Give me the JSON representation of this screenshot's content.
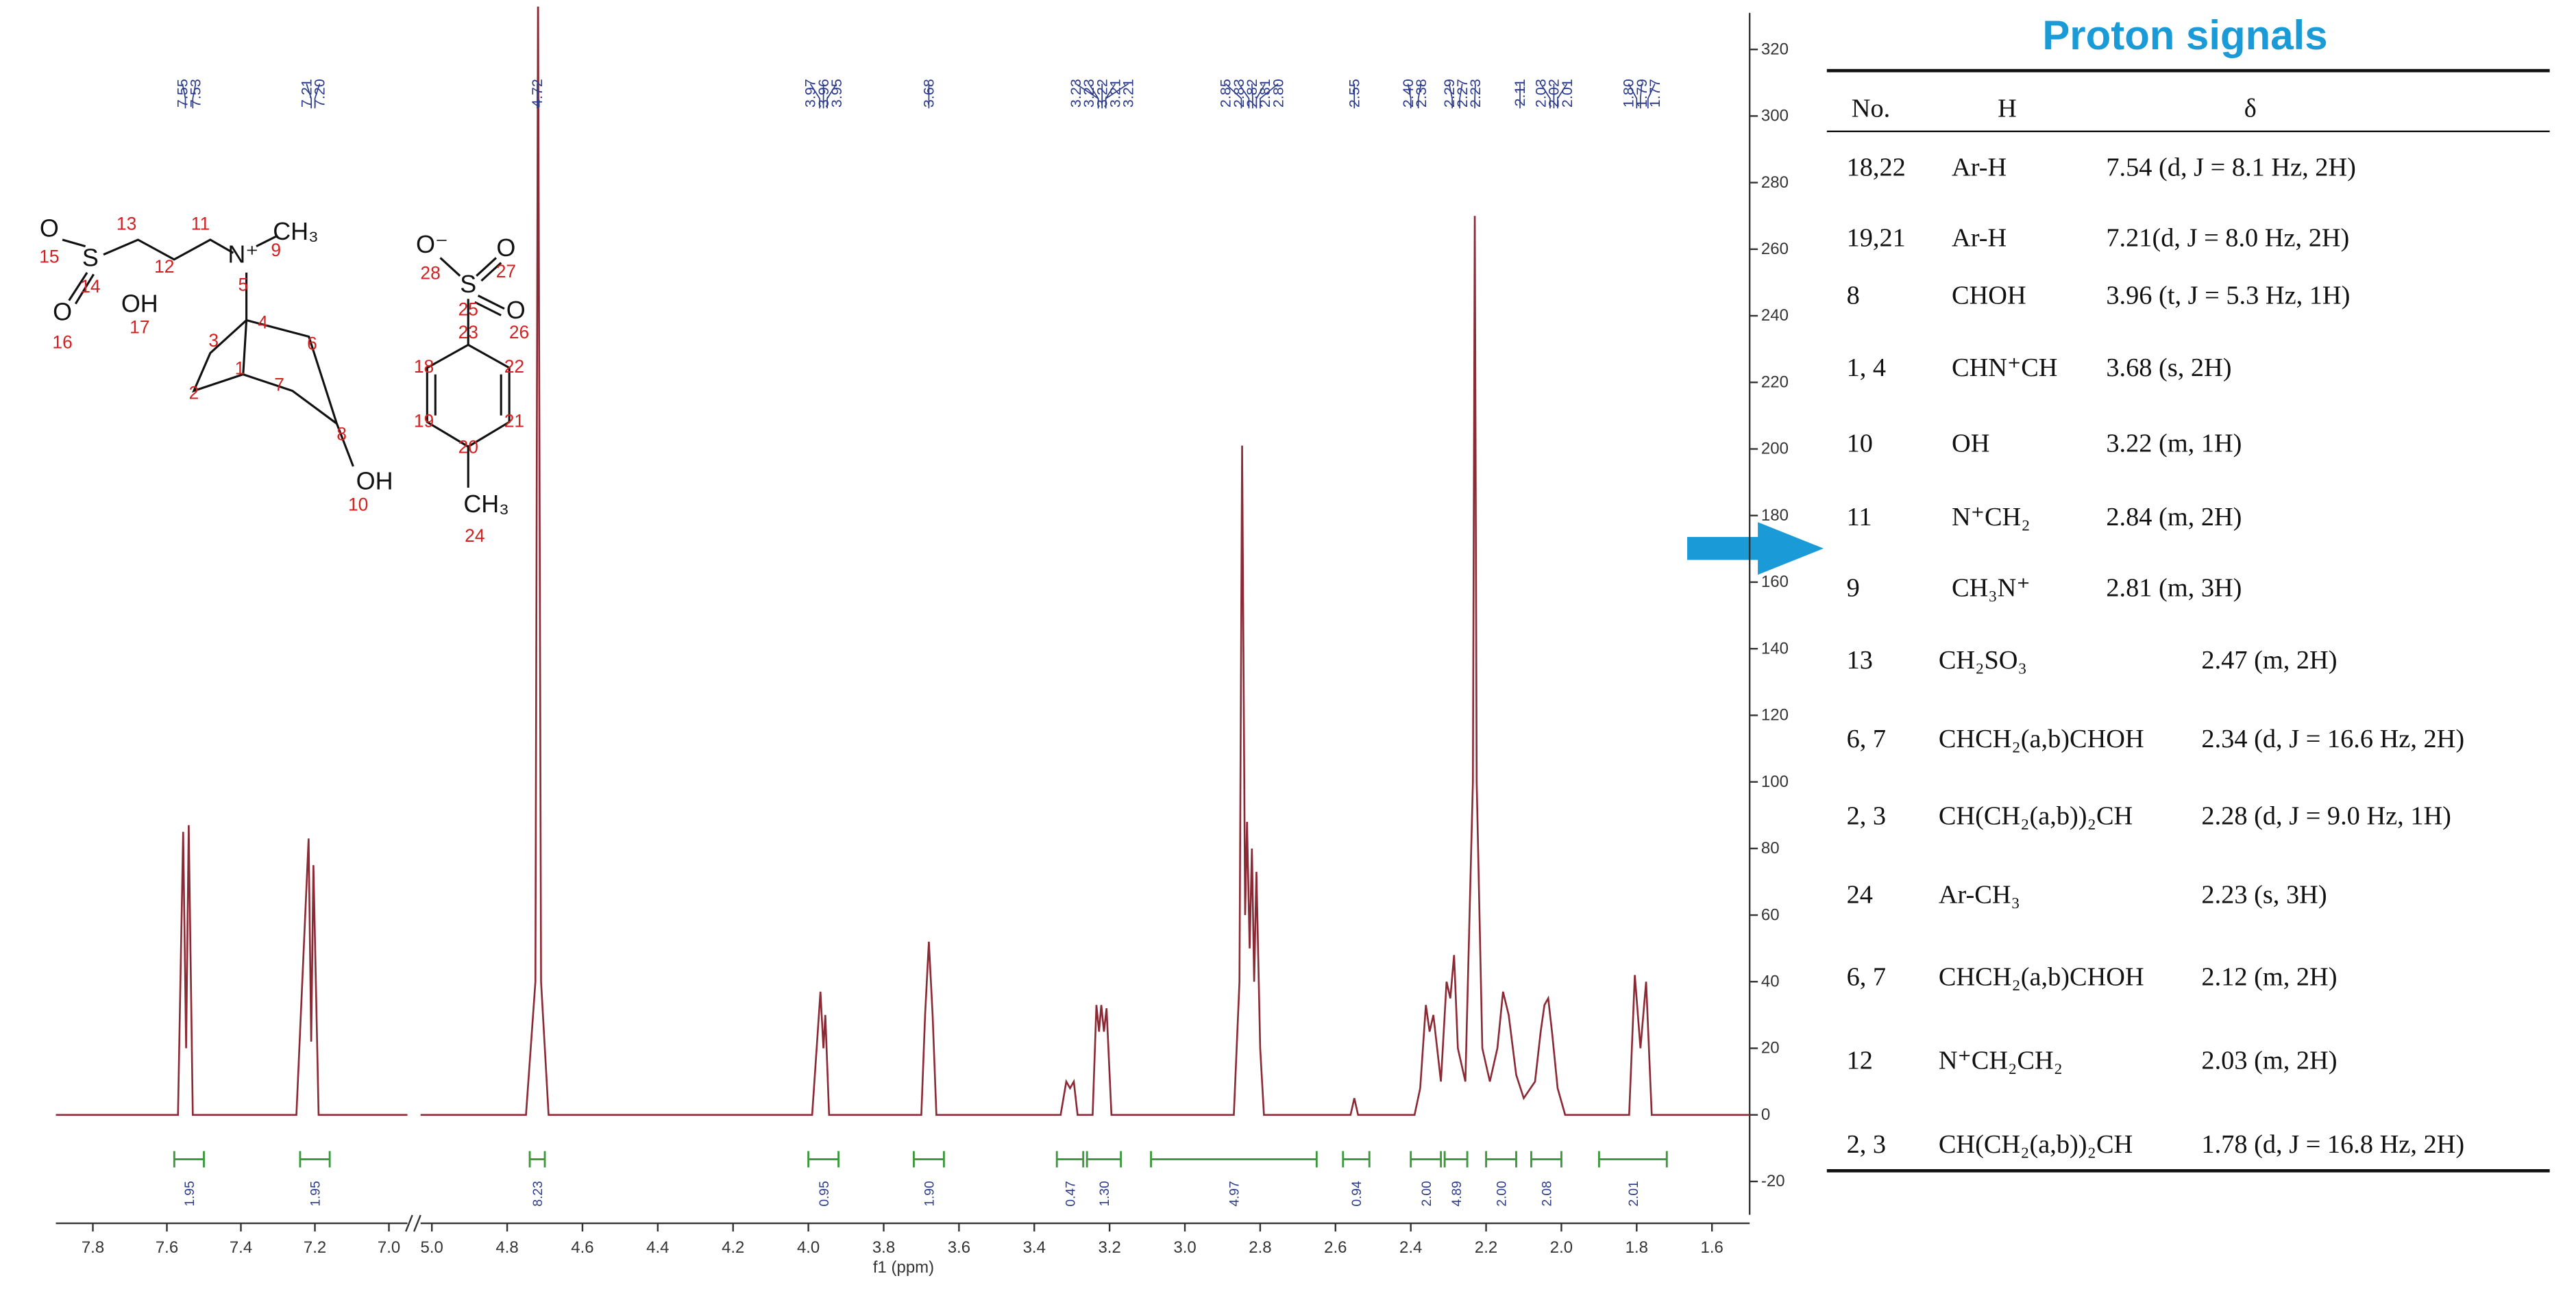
{
  "chart_data": [
    {
      "type": "line",
      "color": "#8b2a35",
      "integral_color": "#3c9a3c",
      "label_color": "#2b3a8a",
      "xlim": [
        7.9,
        6.95
      ],
      "ylim": [
        -30,
        330
      ],
      "xticks": [
        7.8,
        7.6,
        7.4,
        7.2,
        {
          "value": 7,
          "label": "7.0"
        }
      ],
      "x": [
        7.9,
        7.57,
        7.556,
        7.548,
        7.541,
        7.53,
        7.25,
        7.217,
        7.21,
        7.204,
        7.19,
        6.95
      ],
      "values": [
        0,
        0,
        85,
        20,
        87,
        0,
        0,
        83,
        22,
        75,
        0,
        0
      ],
      "peak_labels": [
        7.55,
        7.53,
        7.21,
        {
          "value": 7.2,
          "label": "7.20"
        }
      ],
      "integrals": [
        {
          "range": [
            7.58,
            7.5
          ],
          "value": 1.95
        },
        {
          "range": [
            7.24,
            7.16
          ],
          "value": 1.95
        }
      ]
    },
    {
      "type": "line",
      "color": "#8b2a35",
      "integral_color": "#3c9a3c",
      "label_color": "#2b3a8a",
      "x_label": "f1 (ppm)",
      "xlim": [
        5.03,
        1.5
      ],
      "ylim": [
        -30,
        330
      ],
      "xticks": [
        {
          "value": 5,
          "label": "5.0"
        },
        4.8,
        4.6,
        4.4,
        4.2,
        {
          "value": 4,
          "label": "4.0"
        },
        3.8,
        3.6,
        3.4,
        3.2,
        {
          "value": 3,
          "label": "3.0"
        },
        2.8,
        2.6,
        2.4,
        2.2,
        {
          "value": 2,
          "label": "2.0"
        },
        1.8,
        1.6
      ],
      "yticks": [
        -20,
        0,
        20,
        40,
        60,
        80,
        100,
        120,
        140,
        160,
        180,
        200,
        220,
        240,
        260,
        280,
        300,
        320
      ],
      "x": [
        5.03,
        4.75,
        4.725,
        4.718,
        4.71,
        4.69,
        3.99,
        3.975,
        3.968,
        3.96,
        3.955,
        3.945,
        3.7,
        3.69,
        3.68,
        3.67,
        3.66,
        3.33,
        3.315,
        3.305,
        3.295,
        3.285,
        3.245,
        3.235,
        3.228,
        3.222,
        3.215,
        3.208,
        3.195,
        2.87,
        2.855,
        2.848,
        2.84,
        2.835,
        2.828,
        2.822,
        2.816,
        2.81,
        2.8,
        2.79,
        2.56,
        2.55,
        2.54,
        2.39,
        2.375,
        2.36,
        2.35,
        2.34,
        2.32,
        2.305,
        2.295,
        2.285,
        2.275,
        2.255,
        2.235,
        2.23,
        2.225,
        2.21,
        2.19,
        2.17,
        2.155,
        2.14,
        2.12,
        2.1,
        2.07,
        2.055,
        2.045,
        2.035,
        2.025,
        2.01,
        1.99,
        1.82,
        1.805,
        1.79,
        1.775,
        1.76,
        1.5
      ],
      "values": [
        0,
        0,
        40,
        340,
        40,
        0,
        0,
        25,
        37,
        20,
        30,
        0,
        0,
        30,
        52,
        30,
        0,
        0,
        10,
        8,
        10,
        0,
        0,
        33,
        25,
        33,
        25,
        32,
        0,
        0,
        40,
        201,
        60,
        88,
        50,
        80,
        40,
        73,
        20,
        0,
        0,
        5,
        0,
        0,
        8,
        33,
        25,
        30,
        10,
        40,
        35,
        48,
        20,
        10,
        100,
        270,
        100,
        20,
        10,
        20,
        37,
        30,
        12,
        5,
        10,
        25,
        33,
        35,
        25,
        8,
        0,
        0,
        42,
        20,
        40,
        0,
        0
      ],
      "peak_labels": [
        4.72,
        3.97,
        3.96,
        3.95,
        3.68,
        3.23,
        3.23,
        3.22,
        3.21,
        3.21,
        2.85,
        2.83,
        2.82,
        2.81,
        {
          "value": 2.8,
          "label": "2.80"
        },
        2.55,
        {
          "value": 2.4,
          "label": "2.40"
        },
        2.38,
        2.29,
        2.27,
        2.23,
        2.11,
        2.03,
        2.02,
        2.01,
        {
          "value": 1.8,
          "label": "1.80"
        },
        1.79,
        1.77
      ],
      "integrals": [
        {
          "range": [
            4.74,
            4.7
          ],
          "value": 8.23
        },
        {
          "range": [
            4,
            3.92
          ],
          "value": 0.95
        },
        {
          "range": [
            3.72,
            3.64
          ],
          "value": 1.9,
          "label": "1.90"
        },
        {
          "range": [
            3.34,
            3.27
          ],
          "value": 0.47
        },
        {
          "range": [
            3.26,
            3.17
          ],
          "value": 1.3,
          "label": "1.30"
        },
        {
          "range": [
            3.09,
            2.65
          ],
          "value": 4.97
        },
        {
          "range": [
            2.58,
            2.51
          ],
          "value": 0.94
        },
        {
          "range": [
            2.4,
            2.32
          ],
          "value": 2,
          "label": "2.00"
        },
        {
          "range": [
            2.31,
            2.25
          ],
          "value": 4.89
        },
        {
          "range": [
            2.2,
            2.12
          ],
          "value": 2,
          "label": "2.00"
        },
        {
          "range": [
            2.08,
            2
          ],
          "value": 2.08
        },
        {
          "range": [
            1.9,
            1.72
          ],
          "value": 2.01
        }
      ]
    }
  ],
  "structures": [
    {
      "labels": [
        "O",
        "13",
        "11",
        "CH₃",
        "15",
        "S",
        "12",
        "N⁺",
        "9",
        "14",
        "OH",
        "5",
        "O",
        "17",
        "16",
        "4",
        "3",
        "6",
        "1",
        "7",
        "2",
        "8",
        "OH",
        "10"
      ]
    },
    {
      "labels": [
        "O⁻",
        "O",
        "28",
        "27",
        "S",
        "25",
        "O",
        "26",
        "23",
        "18",
        "22",
        "19",
        "21",
        "20",
        "CH₃",
        "24"
      ]
    }
  ],
  "table": {
    "title": "Proton signals",
    "columns": [
      "No.",
      "H",
      "δ"
    ],
    "rows": [
      [
        "18,22",
        "Ar-H",
        "7.54 (d, J = 8.1 Hz, 2H)"
      ],
      [
        "19,21",
        "Ar-H",
        "7.21(d, J = 8.0 Hz, 2H)"
      ],
      [
        "8",
        "CHOH",
        "3.96 (t, J = 5.3 Hz, 1H)"
      ],
      [
        "1, 4",
        "CHN⁺CH",
        "3.68 (s, 2H)"
      ],
      [
        "10",
        "OH",
        "3.22 (m, 1H)"
      ],
      [
        "11",
        "N⁺CH₂",
        "2.84 (m, 2H)"
      ],
      [
        "9",
        "CH₃N⁺",
        "2.81 (m, 3H)"
      ],
      [
        "13",
        "CH₂SO₃",
        "2.47 (m, 2H)"
      ],
      [
        "6, 7",
        "CHCH₂(a,b)CHOH",
        "2.34 (d, J = 16.6 Hz, 2H)"
      ],
      [
        "2, 3",
        "CH(CH₂(a,b))₂CH",
        "2.28 (d, J = 9.0 Hz, 1H)"
      ],
      [
        "24",
        "Ar-CH₃",
        "2.23 (s, 3H)"
      ],
      [
        "6, 7",
        "CHCH₂(a,b)CHOH",
        "2.12 (m, 2H)"
      ],
      [
        "12",
        "N⁺CH₂CH₂",
        "2.03 (m, 2H)"
      ],
      [
        "2, 3",
        "CH(CH₂(a,b))₂CH",
        "1.78 (d, J = 16.8 Hz, 2H)"
      ]
    ]
  }
}
